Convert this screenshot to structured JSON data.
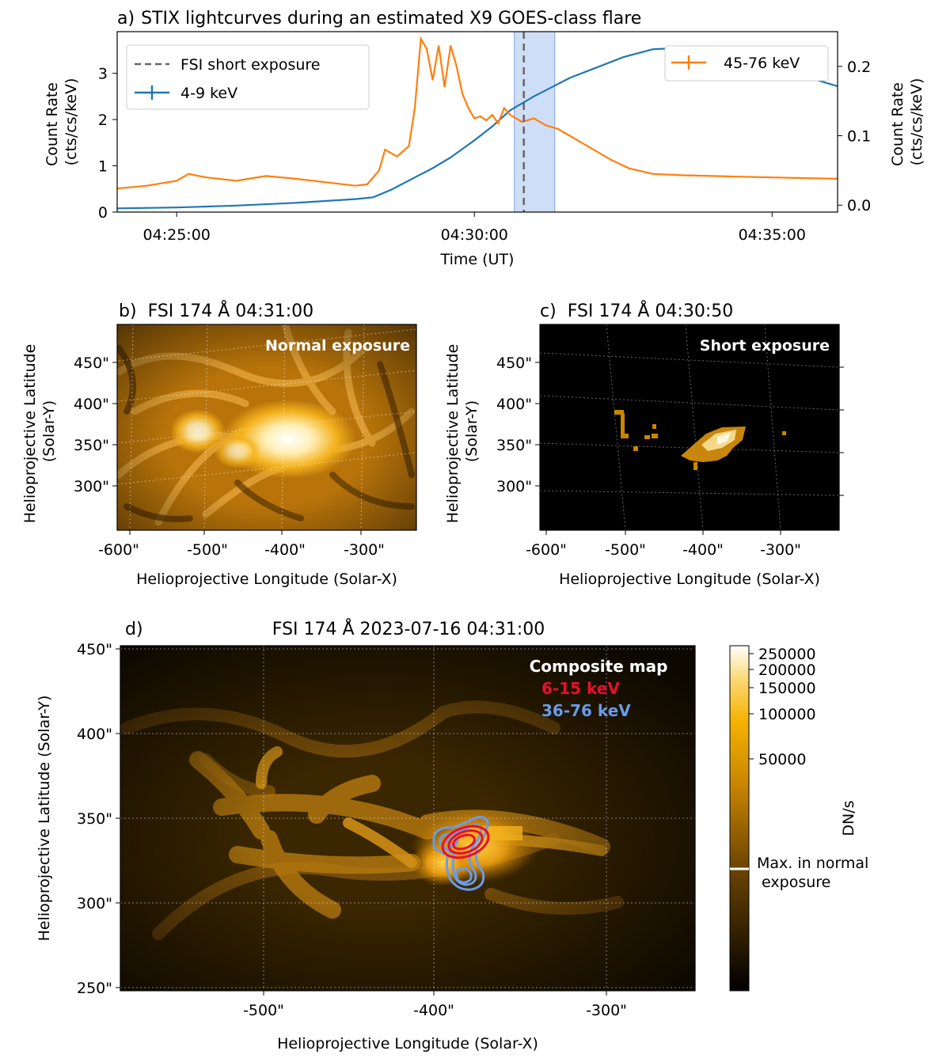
{
  "colors": {
    "low_energy": "#1f77b4",
    "high_energy": "#ff7f0e",
    "fsi_marker": "#666666",
    "short_exposure_band": "#aec8f0",
    "thermal_contour": "#e8102a",
    "nonthermal_contour": "#6a9be8"
  },
  "chart_data": [
    {
      "panel": "a)",
      "type": "line",
      "title": "STIX lightcurves during an estimated X9 GOES-class flare",
      "xlabel": "Time (UT)",
      "ylabel_left": [
        "Count Rate",
        "(cts/cs/keV)"
      ],
      "ylabel_right": [
        "Count Rate",
        "(cts/cs/keV)"
      ],
      "x_ticks": [
        "04:25:00",
        "04:30:00",
        "04:35:00"
      ],
      "x_tick_minutes": [
        25,
        30,
        35
      ],
      "xlim_minutes": [
        24,
        36.1
      ],
      "ylim_left": [
        0,
        3.9
      ],
      "ylim_right": [
        -0.01,
        0.25
      ],
      "y_ticks_left": [
        "0",
        "1",
        "2",
        "3"
      ],
      "y_ticks_right": [
        "0.0",
        "0.1",
        "0.2"
      ],
      "short_exposure_time_minutes": 30.83,
      "short_exposure_window_minutes": [
        30.67,
        31.35
      ],
      "legend_left": {
        "placement": "upper left",
        "entries": [
          "FSI short exposure",
          "4-9 keV"
        ]
      },
      "legend_right": {
        "placement": "upper right",
        "entries": [
          "45-76 keV"
        ]
      },
      "series": [
        {
          "name": "4-9 keV",
          "axis": "left",
          "x": [
            24.0,
            25.0,
            26.0,
            27.0,
            28.0,
            28.3,
            28.6,
            29.0,
            29.3,
            29.6,
            30.0,
            30.3,
            30.6,
            31.0,
            31.3,
            31.6,
            32.0,
            32.5,
            33.0,
            33.5,
            34.0,
            34.5,
            35.0,
            35.5,
            36.1
          ],
          "values": [
            0.08,
            0.1,
            0.14,
            0.2,
            0.28,
            0.32,
            0.48,
            0.75,
            0.95,
            1.18,
            1.55,
            1.85,
            2.2,
            2.5,
            2.7,
            2.9,
            3.1,
            3.35,
            3.52,
            3.55,
            3.4,
            3.25,
            3.1,
            2.95,
            2.72
          ]
        },
        {
          "name": "45-76 keV",
          "axis": "right",
          "x": [
            24.0,
            24.5,
            25.0,
            25.2,
            25.5,
            26.0,
            26.5,
            27.0,
            27.5,
            28.0,
            28.2,
            28.4,
            28.5,
            28.7,
            28.9,
            29.0,
            29.1,
            29.2,
            29.3,
            29.4,
            29.5,
            29.6,
            29.7,
            29.8,
            29.9,
            30.0,
            30.1,
            30.2,
            30.3,
            30.4,
            30.5,
            30.6,
            30.8,
            31.0,
            31.2,
            31.4,
            31.6,
            31.8,
            32.0,
            32.3,
            32.6,
            33.0,
            33.5,
            34.0,
            34.5,
            35.0,
            35.5,
            36.1
          ],
          "values": [
            0.024,
            0.028,
            0.035,
            0.045,
            0.04,
            0.035,
            0.042,
            0.038,
            0.033,
            0.028,
            0.03,
            0.05,
            0.08,
            0.07,
            0.085,
            0.14,
            0.24,
            0.225,
            0.18,
            0.23,
            0.17,
            0.23,
            0.2,
            0.16,
            0.14,
            0.125,
            0.128,
            0.122,
            0.13,
            0.118,
            0.14,
            0.13,
            0.12,
            0.125,
            0.115,
            0.11,
            0.1,
            0.09,
            0.08,
            0.065,
            0.053,
            0.045,
            0.043,
            0.042,
            0.041,
            0.04,
            0.039,
            0.038
          ]
        }
      ]
    },
    {
      "panel": "b)",
      "type": "heatmap",
      "title": "FSI 174 Å 04:31:00",
      "overlay_label": "Normal exposure",
      "xlabel": "Helioprojective Longitude (Solar-X)",
      "ylabel": [
        "Helioprojective Latitude",
        "(Solar-Y)"
      ],
      "x_ticks": [
        "-600\"",
        "-500\"",
        "-400\"",
        "-300\""
      ],
      "y_ticks": [
        "450\"",
        "400\"",
        "350\"",
        "300\""
      ]
    },
    {
      "panel": "c)",
      "type": "heatmap",
      "title": "FSI 174 Å 04:30:50",
      "overlay_label": "Short exposure",
      "xlabel": "Helioprojective Longitude (Solar-X)",
      "ylabel": [
        "Helioprojective Latitude",
        "(Solar-Y)"
      ],
      "x_ticks": [
        "-600\"",
        "-500\"",
        "-400\"",
        "-300\""
      ],
      "y_ticks": [
        "450\"",
        "400\"",
        "350\"",
        "300\""
      ]
    },
    {
      "panel": "d)",
      "type": "heatmap",
      "title": "FSI 174 Å 2023-07-16 04:31:00",
      "overlay_labels": [
        "Composite map",
        "6-15 keV",
        "36-76 keV"
      ],
      "xlabel": "Helioprojective Longitude (Solar-X)",
      "ylabel": "Helioprojective Latitude (Solar-Y)",
      "x_ticks": [
        "-500\"",
        "-400\"",
        "-300\""
      ],
      "y_ticks": [
        "450\"",
        "400\"",
        "350\"",
        "300\"",
        "250\""
      ],
      "colorbar": {
        "label": "DN/s",
        "ticks": [
          "250000",
          "200000",
          "150000",
          "100000",
          "50000"
        ],
        "marker_label": [
          "Max. in normal",
          " exposure"
        ]
      }
    }
  ]
}
